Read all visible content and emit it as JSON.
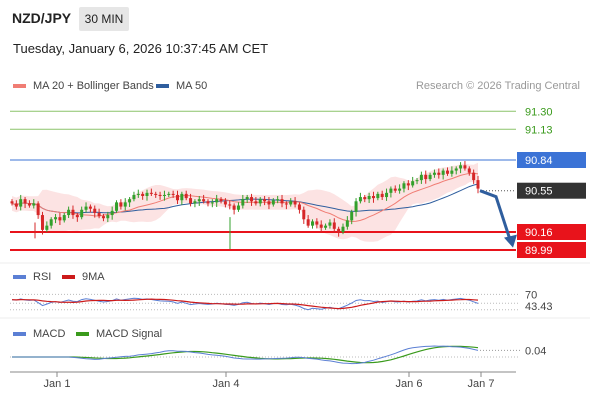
{
  "header": {
    "symbol": "NZD/JPY",
    "timeframe": "30 MIN",
    "datetime": "Tuesday, January 6, 2026 10:37:45 AM CET",
    "credit": "Research © 2026 Trading Central"
  },
  "legends": {
    "ma20": "MA 20 + Bollinger Bands",
    "ma50": "MA 50",
    "rsi": "RSI",
    "rsi_ma": "9MA",
    "macd": "MACD",
    "macd_signal": "MACD Signal"
  },
  "colors": {
    "ma20": "#f07d74",
    "ma50": "#2f5e9e",
    "bands": "#fbd9d9",
    "target": "#8cc46a",
    "resistance": "#3b73d6",
    "support": "#e8131b",
    "current": "#333333",
    "candle_up": "#33a02c",
    "candle_down": "#d62728",
    "arrow": "#2f5e9e",
    "rsi": "#5b7fd4",
    "rsi_ma": "#cc1a1a",
    "macd": "#5b7fd4",
    "macd_signal": "#3a9a1c"
  },
  "chart_data": {
    "type": "candlestick",
    "price_axis": {
      "min": 89.8,
      "max": 91.45
    },
    "x_ticks": [
      "Jan 1",
      "Jan 4",
      "Jan 6",
      "Jan 7"
    ],
    "levels": [
      {
        "value": 91.3,
        "label": "91.30",
        "kind": "target"
      },
      {
        "value": 91.13,
        "label": "91.13",
        "kind": "target"
      },
      {
        "value": 90.84,
        "label": "90.84",
        "kind": "resistance"
      },
      {
        "value": 90.55,
        "label": "90.55",
        "kind": "current"
      },
      {
        "value": 90.16,
        "label": "90.16",
        "kind": "support"
      },
      {
        "value": 89.99,
        "label": "89.99",
        "kind": "support"
      }
    ],
    "projection": {
      "from": 90.55,
      "to": 90.05,
      "direction": "down"
    },
    "close_series": [
      90.43,
      90.4,
      90.47,
      90.43,
      90.41,
      90.43,
      90.32,
      90.18,
      90.22,
      90.28,
      90.3,
      90.27,
      90.32,
      90.37,
      90.32,
      90.3,
      90.37,
      90.4,
      90.38,
      90.34,
      90.31,
      90.29,
      90.32,
      90.36,
      90.44,
      90.4,
      90.44,
      90.47,
      90.51,
      90.52,
      90.5,
      90.53,
      90.52,
      90.51,
      90.5,
      90.51,
      90.52,
      90.51,
      90.46,
      90.52,
      90.48,
      90.43,
      90.45,
      90.47,
      90.45,
      90.43,
      90.44,
      90.47,
      90.45,
      90.42,
      90.41,
      90.37,
      90.41,
      90.47,
      90.49,
      90.45,
      90.43,
      90.47,
      90.45,
      90.42,
      90.46,
      90.47,
      90.43,
      90.42,
      90.45,
      90.42,
      90.37,
      90.28,
      90.22,
      90.26,
      90.23,
      90.2,
      90.22,
      90.25,
      90.19,
      90.16,
      90.21,
      90.27,
      90.35,
      90.45,
      90.49,
      90.47,
      90.5,
      90.48,
      90.52,
      90.49,
      90.53,
      90.57,
      90.55,
      90.57,
      90.62,
      90.6,
      90.64,
      90.65,
      90.7,
      90.66,
      90.7,
      90.72,
      90.7,
      90.74,
      90.71,
      90.74,
      90.76,
      90.79,
      90.76,
      90.72,
      90.65,
      90.57
    ],
    "rsi": {
      "labels": [
        "70",
        "43.43"
      ],
      "current": 43.43,
      "overbought": 70
    },
    "macd": {
      "current": 0.04,
      "label": "0.04"
    }
  }
}
